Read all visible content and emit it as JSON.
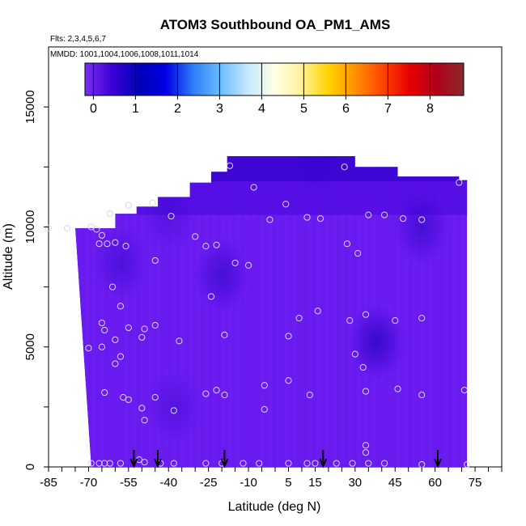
{
  "chart_data": {
    "type": "heatmap",
    "title": "ATOM3 Southbound OA_PM1_AMS",
    "flights_note": "Flts: 2,3,4,5,6,7",
    "dates_note": "MMDD: 1001,1004,1006,1008,1011,1014",
    "xlabel": "Latitude (deg N)",
    "ylabel": "Altitude (m)",
    "xlim": [
      -85,
      85
    ],
    "ylim": [
      0,
      17500
    ],
    "xticks": [
      -85,
      -70,
      -55,
      -40,
      -25,
      -10,
      5,
      15,
      30,
      45,
      60,
      75
    ],
    "yticks": [
      0,
      5000,
      10000,
      15000
    ],
    "colorbar": {
      "range": [
        -0.2,
        8.8
      ],
      "ticks": [
        0,
        1,
        2,
        3,
        4,
        5,
        6,
        7,
        8
      ],
      "colors": [
        "#7b2ff2",
        "#3d00d8",
        "#0000b4",
        "#0000e6",
        "#2f7ef8",
        "#69bcff",
        "#c4e8ff",
        "#ffffe6",
        "#fff19a",
        "#ffd400",
        "#ff9000",
        "#ff4400",
        "#e80000",
        "#b0001c",
        "#8a2a2a"
      ]
    },
    "envelope": [
      {
        "lat": -68,
        "top": 9950
      },
      {
        "lat": -60,
        "top": 10550
      },
      {
        "lat": -52,
        "top": 10850
      },
      {
        "lat": -44,
        "top": 11250
      },
      {
        "lat": -32,
        "top": 11850
      },
      {
        "lat": -24,
        "top": 12300
      },
      {
        "lat": -18,
        "top": 12950
      },
      {
        "lat": 22,
        "top": 12950
      },
      {
        "lat": 30,
        "top": 12500
      },
      {
        "lat": 46,
        "top": 12100
      },
      {
        "lat": 69,
        "top": 11950
      },
      {
        "lat": 72,
        "top": 11900
      }
    ],
    "bottom_edge": {
      "lat_at_top": -75,
      "lat_at_ground": -69,
      "right_lat": 72
    },
    "low_value_regions": [
      {
        "lat": 38,
        "alt": 5200,
        "value": 0.5
      },
      {
        "lat": -20,
        "alt": 8000,
        "value": 0.7
      },
      {
        "lat": -58,
        "alt": 8500,
        "value": 0.8
      },
      {
        "lat": -40,
        "alt": 10500,
        "value": 0.9
      },
      {
        "lat": 15,
        "alt": 12700,
        "value": 1.0
      },
      {
        "lat": 55,
        "alt": 10000,
        "value": 0.7
      },
      {
        "lat": -38,
        "alt": 2500,
        "value": 0.9
      }
    ],
    "sample_points": [
      {
        "lat": -85,
        "alt": 9950
      },
      {
        "lat": -78,
        "alt": 9950
      },
      {
        "lat": -69,
        "alt": 10000
      },
      {
        "lat": -67,
        "alt": 9900
      },
      {
        "lat": -65,
        "alt": 9650
      },
      {
        "lat": -62,
        "alt": 10550
      },
      {
        "lat": -66,
        "alt": 9300
      },
      {
        "lat": -63,
        "alt": 9300
      },
      {
        "lat": -60,
        "alt": 9350
      },
      {
        "lat": -56,
        "alt": 9200
      },
      {
        "lat": -55,
        "alt": 10900
      },
      {
        "lat": -46,
        "alt": 11000
      },
      {
        "lat": -39,
        "alt": 10450
      },
      {
        "lat": -30,
        "alt": 9600
      },
      {
        "lat": -26,
        "alt": 9200
      },
      {
        "lat": -22,
        "alt": 9250
      },
      {
        "lat": -45,
        "alt": 8600
      },
      {
        "lat": -17,
        "alt": 12550
      },
      {
        "lat": 4,
        "alt": 10950
      },
      {
        "lat": -8,
        "alt": 11650
      },
      {
        "lat": -2,
        "alt": 10300
      },
      {
        "lat": 12,
        "alt": 10400
      },
      {
        "lat": 17,
        "alt": 10350
      },
      {
        "lat": 35,
        "alt": 10500
      },
      {
        "lat": 41,
        "alt": 10500
      },
      {
        "lat": 48,
        "alt": 10350
      },
      {
        "lat": 55,
        "alt": 10300
      },
      {
        "lat": 69,
        "alt": 11850
      },
      {
        "lat": 26,
        "alt": 12500
      },
      {
        "lat": 27,
        "alt": 9300
      },
      {
        "lat": 31,
        "alt": 8900
      },
      {
        "lat": -15,
        "alt": 8500
      },
      {
        "lat": -10,
        "alt": 8400
      },
      {
        "lat": -61,
        "alt": 7500
      },
      {
        "lat": -58,
        "alt": 6700
      },
      {
        "lat": -24,
        "alt": 7100
      },
      {
        "lat": 16,
        "alt": 6500
      },
      {
        "lat": 9,
        "alt": 6200
      },
      {
        "lat": 28,
        "alt": 6100
      },
      {
        "lat": 34,
        "alt": 6350
      },
      {
        "lat": 45,
        "alt": 6100
      },
      {
        "lat": 55,
        "alt": 6200
      },
      {
        "lat": -65,
        "alt": 6000
      },
      {
        "lat": -64,
        "alt": 5700
      },
      {
        "lat": -55,
        "alt": 5800
      },
      {
        "lat": -49,
        "alt": 5750
      },
      {
        "lat": -45,
        "alt": 5900
      },
      {
        "lat": -50,
        "alt": 5400
      },
      {
        "lat": -36,
        "alt": 5250
      },
      {
        "lat": -19,
        "alt": 5500
      },
      {
        "lat": 5,
        "alt": 5450
      },
      {
        "lat": -70,
        "alt": 4950
      },
      {
        "lat": -65,
        "alt": 5000
      },
      {
        "lat": -60,
        "alt": 5300
      },
      {
        "lat": -58,
        "alt": 4600
      },
      {
        "lat": -60,
        "alt": 4300
      },
      {
        "lat": 30,
        "alt": 4700
      },
      {
        "lat": 33,
        "alt": 4150
      },
      {
        "lat": 5,
        "alt": 3600
      },
      {
        "lat": -4,
        "alt": 3400
      },
      {
        "lat": -64,
        "alt": 3100
      },
      {
        "lat": -57,
        "alt": 2900
      },
      {
        "lat": -55,
        "alt": 2800
      },
      {
        "lat": -45,
        "alt": 2900
      },
      {
        "lat": -26,
        "alt": 3050
      },
      {
        "lat": -22,
        "alt": 3200
      },
      {
        "lat": -19,
        "alt": 3000
      },
      {
        "lat": 13,
        "alt": 3000
      },
      {
        "lat": 34,
        "alt": 3150
      },
      {
        "lat": 46,
        "alt": 3250
      },
      {
        "lat": 55,
        "alt": 3000
      },
      {
        "lat": 71,
        "alt": 3200
      },
      {
        "lat": -50,
        "alt": 2450
      },
      {
        "lat": -49,
        "alt": 1950
      },
      {
        "lat": -38,
        "alt": 2350
      },
      {
        "lat": -4,
        "alt": 2400
      },
      {
        "lat": 34,
        "alt": 900
      },
      {
        "lat": 34,
        "alt": 600
      },
      {
        "lat": -51,
        "alt": 300
      },
      {
        "lat": -49,
        "alt": 200
      },
      {
        "lat": -69,
        "alt": 150
      },
      {
        "lat": -66,
        "alt": 150
      },
      {
        "lat": -64,
        "alt": 150
      },
      {
        "lat": -62,
        "alt": 150
      },
      {
        "lat": -58,
        "alt": 150
      },
      {
        "lat": -43,
        "alt": 150
      },
      {
        "lat": -38,
        "alt": 150
      },
      {
        "lat": -26,
        "alt": 150
      },
      {
        "lat": -20,
        "alt": 150
      },
      {
        "lat": -12,
        "alt": 150
      },
      {
        "lat": -6,
        "alt": 150
      },
      {
        "lat": 5,
        "alt": 150
      },
      {
        "lat": 12,
        "alt": 150
      },
      {
        "lat": 15,
        "alt": 150
      },
      {
        "lat": 23,
        "alt": 150
      },
      {
        "lat": 29,
        "alt": 150
      },
      {
        "lat": 35,
        "alt": 150
      },
      {
        "lat": 41,
        "alt": 150
      },
      {
        "lat": 55,
        "alt": 100
      },
      {
        "lat": 72,
        "alt": 100
      }
    ],
    "arrow_latitudes": [
      -53,
      -44,
      -19,
      18,
      61
    ]
  }
}
